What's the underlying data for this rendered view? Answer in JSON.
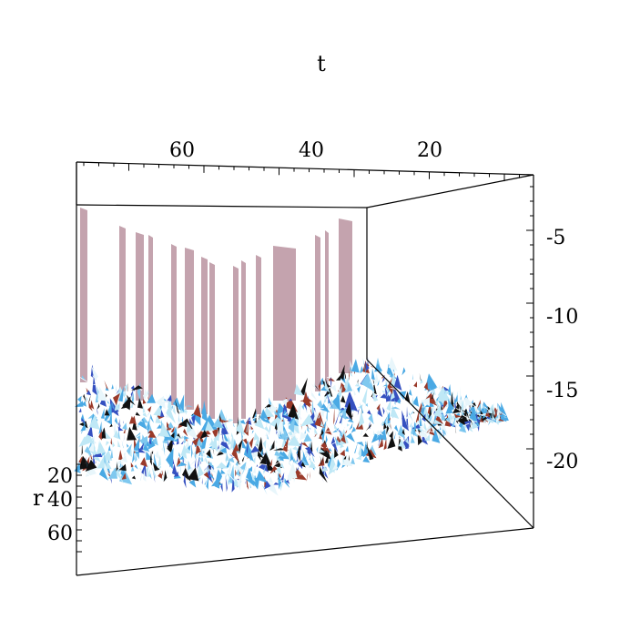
{
  "chart_data": {
    "type": "surface",
    "projection": "3d",
    "title": "",
    "axes": {
      "t": {
        "label": "t",
        "ticks": [
          "60",
          "40",
          "20"
        ]
      },
      "r": {
        "label": "r",
        "ticks": [
          "20",
          "40",
          "60"
        ]
      },
      "z": {
        "label": "",
        "ticks": [
          "-5",
          "-10",
          "-15",
          "-20"
        ]
      }
    },
    "box": true,
    "colors": {
      "spikes": "#c4a3ae",
      "surface_light": "#bfe8f6",
      "surface_mid": "#4aa9e4",
      "surface_blue": "#3550c0",
      "surface_red": "#9a3a2a",
      "surface_dark": "#111111",
      "frame": "#000000"
    }
  }
}
